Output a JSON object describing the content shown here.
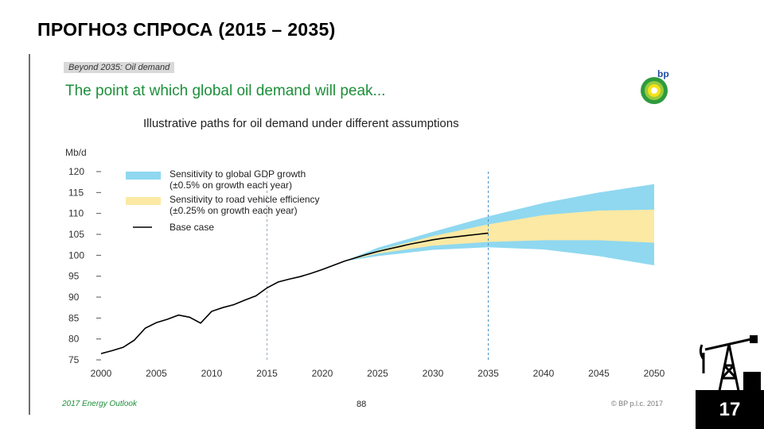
{
  "slide": {
    "title": "ПРОГНОЗ СПРОСА (2015 – 2035)",
    "slide_number": "17"
  },
  "panel": {
    "tag": "Beyond 2035: Oil demand",
    "headline": "The point at which global oil demand will peak...",
    "subtitle": "Illustrative paths for oil demand under different assumptions",
    "footer_left": "2017 Energy Outlook",
    "footer_page": "88",
    "footer_right": "© BP p.l.c. 2017",
    "logo_text": "bp"
  },
  "chart_data": {
    "type": "area",
    "title": "Illustrative paths for oil demand under different assumptions",
    "ylabel": "Mb/d",
    "xlabel": "",
    "xlim": [
      2000,
      2050
    ],
    "ylim": [
      75,
      120
    ],
    "x_ticks": [
      2000,
      2005,
      2010,
      2015,
      2020,
      2025,
      2030,
      2035,
      2040,
      2045,
      2050
    ],
    "y_ticks": [
      75,
      80,
      85,
      90,
      95,
      100,
      105,
      110,
      115,
      120
    ],
    "reference_lines_x": [
      2015,
      2035
    ],
    "grid": false,
    "legend_position": "top-left",
    "colors": {
      "gdp": "#8fd8f0",
      "efficiency": "#fbe9a4",
      "base": "#000000"
    },
    "legend": [
      {
        "key": "gdp",
        "label_line1": "Sensitivity to global GDP growth",
        "label_line2": "(±0.5% on growth each year)"
      },
      {
        "key": "efficiency",
        "label_line1": "Sensitivity to road vehicle efficiency",
        "label_line2": "(±0.25% on growth each year)"
      },
      {
        "key": "base",
        "label_line1": "Base case",
        "label_line2": ""
      }
    ],
    "series": [
      {
        "name": "Base case",
        "x": [
          2000,
          2001,
          2002,
          2003,
          2004,
          2005,
          2006,
          2007,
          2008,
          2009,
          2010,
          2011,
          2012,
          2013,
          2014,
          2015,
          2016,
          2017,
          2018,
          2019,
          2020,
          2021,
          2022,
          2023,
          2024,
          2025,
          2026,
          2027,
          2028,
          2029,
          2030,
          2031,
          2032,
          2033,
          2034,
          2035
        ],
        "y": [
          76.5,
          77.2,
          78.0,
          79.7,
          82.6,
          83.9,
          84.7,
          85.7,
          85.2,
          83.8,
          86.6,
          87.5,
          88.2,
          89.3,
          90.3,
          92.2,
          93.6,
          94.3,
          94.9,
          95.7,
          96.6,
          97.6,
          98.6,
          99.4,
          100.2,
          100.9,
          101.5,
          102.1,
          102.7,
          103.2,
          103.7,
          104.1,
          104.4,
          104.7,
          105.0,
          105.3
        ]
      },
      {
        "name": "Sensitivity to global GDP growth",
        "x": [
          2022,
          2025,
          2030,
          2035,
          2040,
          2045,
          2050
        ],
        "upper": [
          98.6,
          101.8,
          105.6,
          109.3,
          112.5,
          115.0,
          117.0
        ],
        "lower": [
          98.6,
          99.8,
          101.3,
          101.9,
          101.4,
          99.8,
          97.6
        ]
      },
      {
        "name": "Sensitivity to road vehicle efficiency",
        "x": [
          2022,
          2025,
          2030,
          2035,
          2040,
          2045,
          2050
        ],
        "upper": [
          98.6,
          101.1,
          104.6,
          107.4,
          109.6,
          110.7,
          110.9
        ],
        "lower": [
          98.6,
          100.4,
          102.3,
          103.2,
          103.6,
          103.6,
          103.0
        ]
      }
    ]
  }
}
